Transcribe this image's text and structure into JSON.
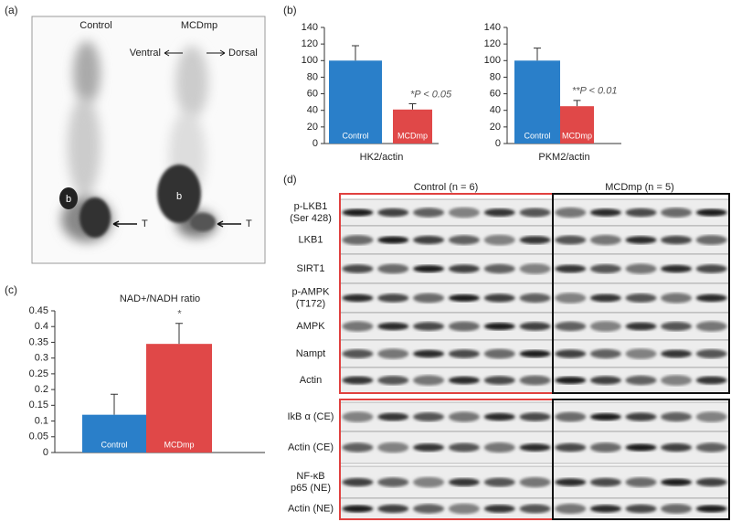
{
  "panel_a": {
    "label": "(a)",
    "columns": [
      "Control",
      "MCDmp"
    ],
    "directions": [
      "Ventral",
      "Dorsal"
    ],
    "markers": [
      "b",
      "T",
      "b",
      "T"
    ]
  },
  "panel_b": {
    "label": "(b)"
  },
  "panel_c": {
    "label": "(c)"
  },
  "panel_d": {
    "label": "(d)",
    "groups": [
      "Control (n = 6)",
      "MCDmp (n = 5)"
    ],
    "rows": [
      [
        "p-LKB1",
        "(Ser 428)"
      ],
      [
        "LKB1"
      ],
      [
        "SIRT1"
      ],
      [
        "p-AMPK",
        "(T172)"
      ],
      [
        "AMPK"
      ],
      [
        "Nampt"
      ],
      [
        "Actin"
      ],
      [
        "IkB α (CE)"
      ],
      [
        "Actin (CE)"
      ],
      [
        "NF-κB",
        "p65 (NE)"
      ],
      [
        "Actin (NE)"
      ]
    ]
  },
  "chart_data": [
    {
      "type": "bar",
      "categories": [
        "Control",
        "MCDmp"
      ],
      "values": [
        100,
        41
      ],
      "errors": [
        18,
        7
      ],
      "colors": [
        "#2a7fc9",
        "#e04848"
      ],
      "xlabel": "HK2/actin",
      "annotation": "*P < 0.05",
      "ylim": [
        0,
        140
      ],
      "yticks": [
        0,
        20,
        40,
        60,
        80,
        100,
        120,
        140
      ]
    },
    {
      "type": "bar",
      "categories": [
        "Control",
        "MCDmp"
      ],
      "values": [
        100,
        45
      ],
      "errors": [
        15,
        7
      ],
      "colors": [
        "#2a7fc9",
        "#e04848"
      ],
      "xlabel": "PKM2/actin",
      "annotation": "**P < 0.01",
      "ylim": [
        0,
        140
      ],
      "yticks": [
        0,
        20,
        40,
        60,
        80,
        100,
        120,
        140
      ]
    },
    {
      "type": "bar",
      "title": "NAD+/NADH ratio",
      "categories": [
        "Control",
        "MCDmp"
      ],
      "values": [
        0.12,
        0.345
      ],
      "errors": [
        0.065,
        0.065
      ],
      "colors": [
        "#2a7fc9",
        "#e04848"
      ],
      "annotation": "*",
      "ylim": [
        0,
        0.45
      ],
      "yticks": [
        0,
        0.05,
        0.1,
        0.15,
        0.2,
        0.25,
        0.3,
        0.35,
        0.4,
        0.45
      ]
    }
  ]
}
